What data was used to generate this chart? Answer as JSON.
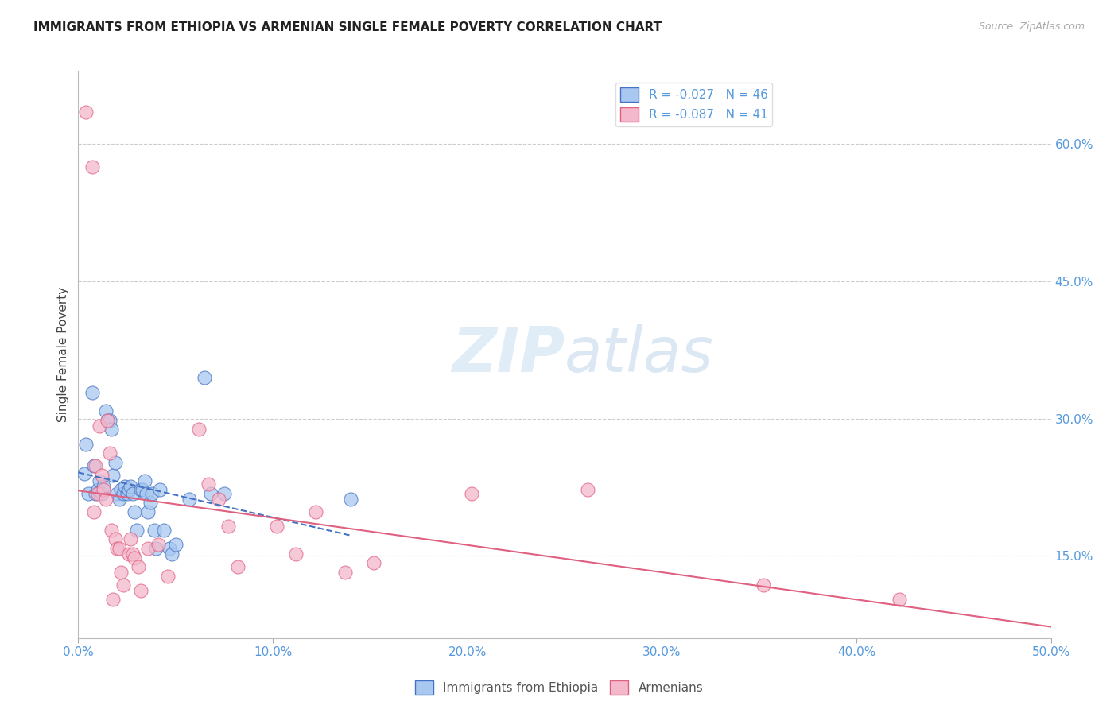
{
  "title": "IMMIGRANTS FROM ETHIOPIA VS ARMENIAN SINGLE FEMALE POVERTY CORRELATION CHART",
  "source": "Source: ZipAtlas.com",
  "ylabel": "Single Female Poverty",
  "right_yticks": [
    "15.0%",
    "30.0%",
    "45.0%",
    "60.0%"
  ],
  "right_ytick_vals": [
    0.15,
    0.3,
    0.45,
    0.6
  ],
  "xtick_vals": [
    0.0,
    0.1,
    0.2,
    0.3,
    0.4,
    0.5
  ],
  "xtick_labels": [
    "0.0%",
    "10.0%",
    "20.0%",
    "30.0%",
    "40.0%",
    "50.0%"
  ],
  "xlabel_ends": [
    "0.0%",
    "50.0%"
  ],
  "xmin": 0.0,
  "xmax": 0.5,
  "ymin": 0.06,
  "ymax": 0.68,
  "watermark_line1": "ZIP",
  "watermark_line2": "atlas",
  "color_ethiopia": "#a8c8f0",
  "color_armenian": "#f4b8cc",
  "trendline_ethiopia_color": "#4472c4",
  "trendline_armenian_color": "#e06080",
  "ethiopia_points": [
    [
      0.003,
      0.24
    ],
    [
      0.004,
      0.272
    ],
    [
      0.005,
      0.218
    ],
    [
      0.007,
      0.328
    ],
    [
      0.008,
      0.248
    ],
    [
      0.009,
      0.218
    ],
    [
      0.01,
      0.222
    ],
    [
      0.011,
      0.232
    ],
    [
      0.012,
      0.218
    ],
    [
      0.013,
      0.226
    ],
    [
      0.014,
      0.308
    ],
    [
      0.015,
      0.298
    ],
    [
      0.016,
      0.298
    ],
    [
      0.017,
      0.288
    ],
    [
      0.018,
      0.238
    ],
    [
      0.019,
      0.252
    ],
    [
      0.02,
      0.218
    ],
    [
      0.021,
      0.212
    ],
    [
      0.022,
      0.222
    ],
    [
      0.023,
      0.218
    ],
    [
      0.024,
      0.226
    ],
    [
      0.025,
      0.218
    ],
    [
      0.026,
      0.222
    ],
    [
      0.027,
      0.226
    ],
    [
      0.028,
      0.218
    ],
    [
      0.029,
      0.198
    ],
    [
      0.03,
      0.178
    ],
    [
      0.032,
      0.222
    ],
    [
      0.033,
      0.222
    ],
    [
      0.034,
      0.232
    ],
    [
      0.035,
      0.218
    ],
    [
      0.036,
      0.198
    ],
    [
      0.037,
      0.208
    ],
    [
      0.038,
      0.218
    ],
    [
      0.039,
      0.178
    ],
    [
      0.04,
      0.158
    ],
    [
      0.042,
      0.222
    ],
    [
      0.044,
      0.178
    ],
    [
      0.047,
      0.158
    ],
    [
      0.048,
      0.152
    ],
    [
      0.05,
      0.162
    ],
    [
      0.057,
      0.212
    ],
    [
      0.065,
      0.345
    ],
    [
      0.068,
      0.218
    ],
    [
      0.075,
      0.218
    ],
    [
      0.14,
      0.212
    ]
  ],
  "armenian_points": [
    [
      0.004,
      0.635
    ],
    [
      0.007,
      0.575
    ],
    [
      0.008,
      0.198
    ],
    [
      0.009,
      0.248
    ],
    [
      0.01,
      0.218
    ],
    [
      0.011,
      0.292
    ],
    [
      0.012,
      0.238
    ],
    [
      0.013,
      0.222
    ],
    [
      0.014,
      0.212
    ],
    [
      0.015,
      0.298
    ],
    [
      0.016,
      0.262
    ],
    [
      0.017,
      0.178
    ],
    [
      0.018,
      0.102
    ],
    [
      0.019,
      0.168
    ],
    [
      0.02,
      0.158
    ],
    [
      0.021,
      0.158
    ],
    [
      0.022,
      0.132
    ],
    [
      0.023,
      0.118
    ],
    [
      0.026,
      0.152
    ],
    [
      0.027,
      0.168
    ],
    [
      0.028,
      0.152
    ],
    [
      0.029,
      0.148
    ],
    [
      0.031,
      0.138
    ],
    [
      0.032,
      0.112
    ],
    [
      0.036,
      0.158
    ],
    [
      0.041,
      0.162
    ],
    [
      0.046,
      0.128
    ],
    [
      0.062,
      0.288
    ],
    [
      0.067,
      0.228
    ],
    [
      0.072,
      0.212
    ],
    [
      0.077,
      0.182
    ],
    [
      0.082,
      0.138
    ],
    [
      0.102,
      0.182
    ],
    [
      0.112,
      0.152
    ],
    [
      0.122,
      0.198
    ],
    [
      0.137,
      0.132
    ],
    [
      0.152,
      0.142
    ],
    [
      0.202,
      0.218
    ],
    [
      0.262,
      0.222
    ],
    [
      0.352,
      0.118
    ],
    [
      0.422,
      0.102
    ]
  ],
  "eth_trend_x": [
    0.0,
    0.14
  ],
  "arm_trend_x": [
    0.0,
    0.5
  ]
}
